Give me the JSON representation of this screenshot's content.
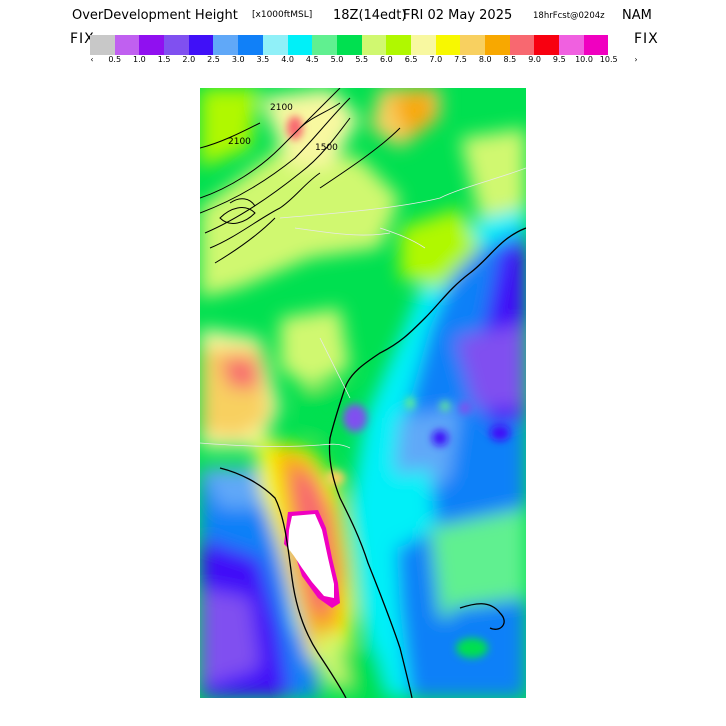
{
  "header": {
    "title_main": "OverDevelopment Height",
    "title_units": "[x1000ftMSL]",
    "title_time": "18Z(14edt)",
    "title_date": "FRI 02 May 2025",
    "title_fcst": "18hrFcst@0204z",
    "title_model": "NAM"
  },
  "colorbar": {
    "left_label": "FIX",
    "right_label": "FIX",
    "left_arrow": "‹",
    "right_arrow": "›",
    "ticks": [
      "0.5",
      "1.0",
      "1.5",
      "2.0",
      "2.5",
      "3.0",
      "3.5",
      "4.0",
      "4.5",
      "5.0",
      "5.5",
      "6.0",
      "6.5",
      "7.0",
      "7.5",
      "8.0",
      "8.5",
      "9.0",
      "9.5",
      "10.0",
      "10.5"
    ],
    "colors": [
      "#c8c8c8",
      "#c060f0",
      "#9010f0",
      "#8050f0",
      "#4010f8",
      "#60a8f8",
      "#1080f8",
      "#90f0f8",
      "#00f0f8",
      "#60f090",
      "#00e050",
      "#d0f870",
      "#b0f800",
      "#f8f8a0",
      "#f8f800",
      "#f8d060",
      "#f8a800",
      "#f86870",
      "#f80010",
      "#f060e0",
      "#f000c0"
    ]
  },
  "map": {
    "contour_labels": [
      "2100",
      "2100",
      "1500"
    ]
  }
}
